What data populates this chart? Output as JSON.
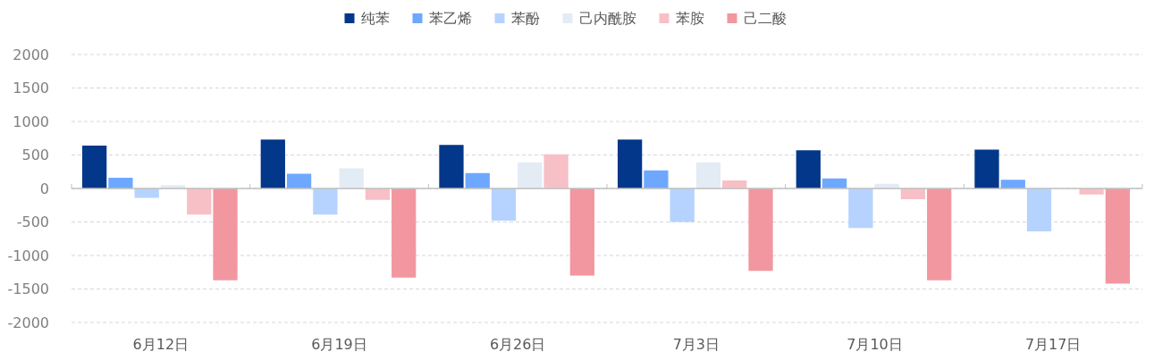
{
  "chart_data": {
    "type": "bar",
    "categories": [
      "6月12日",
      "6月19日",
      "6月26日",
      "7月3日",
      "7月10日",
      "7月17日"
    ],
    "series": [
      {
        "name": "纯苯",
        "color": "#02378a",
        "values": [
          640,
          730,
          650,
          730,
          570,
          580
        ]
      },
      {
        "name": "苯乙烯",
        "color": "#6ea8fe",
        "values": [
          160,
          220,
          230,
          270,
          150,
          130
        ]
      },
      {
        "name": "苯酚",
        "color": "#b5d3fe",
        "values": [
          -140,
          -390,
          -480,
          -500,
          -590,
          -640
        ]
      },
      {
        "name": "己内酰胺",
        "color": "#e3ebf5",
        "values": [
          50,
          300,
          390,
          390,
          70,
          null
        ]
      },
      {
        "name": "苯胺",
        "color": "#f7c0c6",
        "values": [
          -390,
          -170,
          510,
          120,
          -160,
          -90
        ]
      },
      {
        "name": "己二酸",
        "color": "#f297a0",
        "values": [
          -1370,
          -1330,
          -1300,
          -1230,
          -1370,
          -1420
        ]
      }
    ],
    "ylim": [
      -2000,
      2000
    ],
    "yticks": [
      -2000,
      -1500,
      -1000,
      -500,
      0,
      500,
      1000,
      1500,
      2000
    ],
    "grid": "y",
    "legend": "top"
  }
}
